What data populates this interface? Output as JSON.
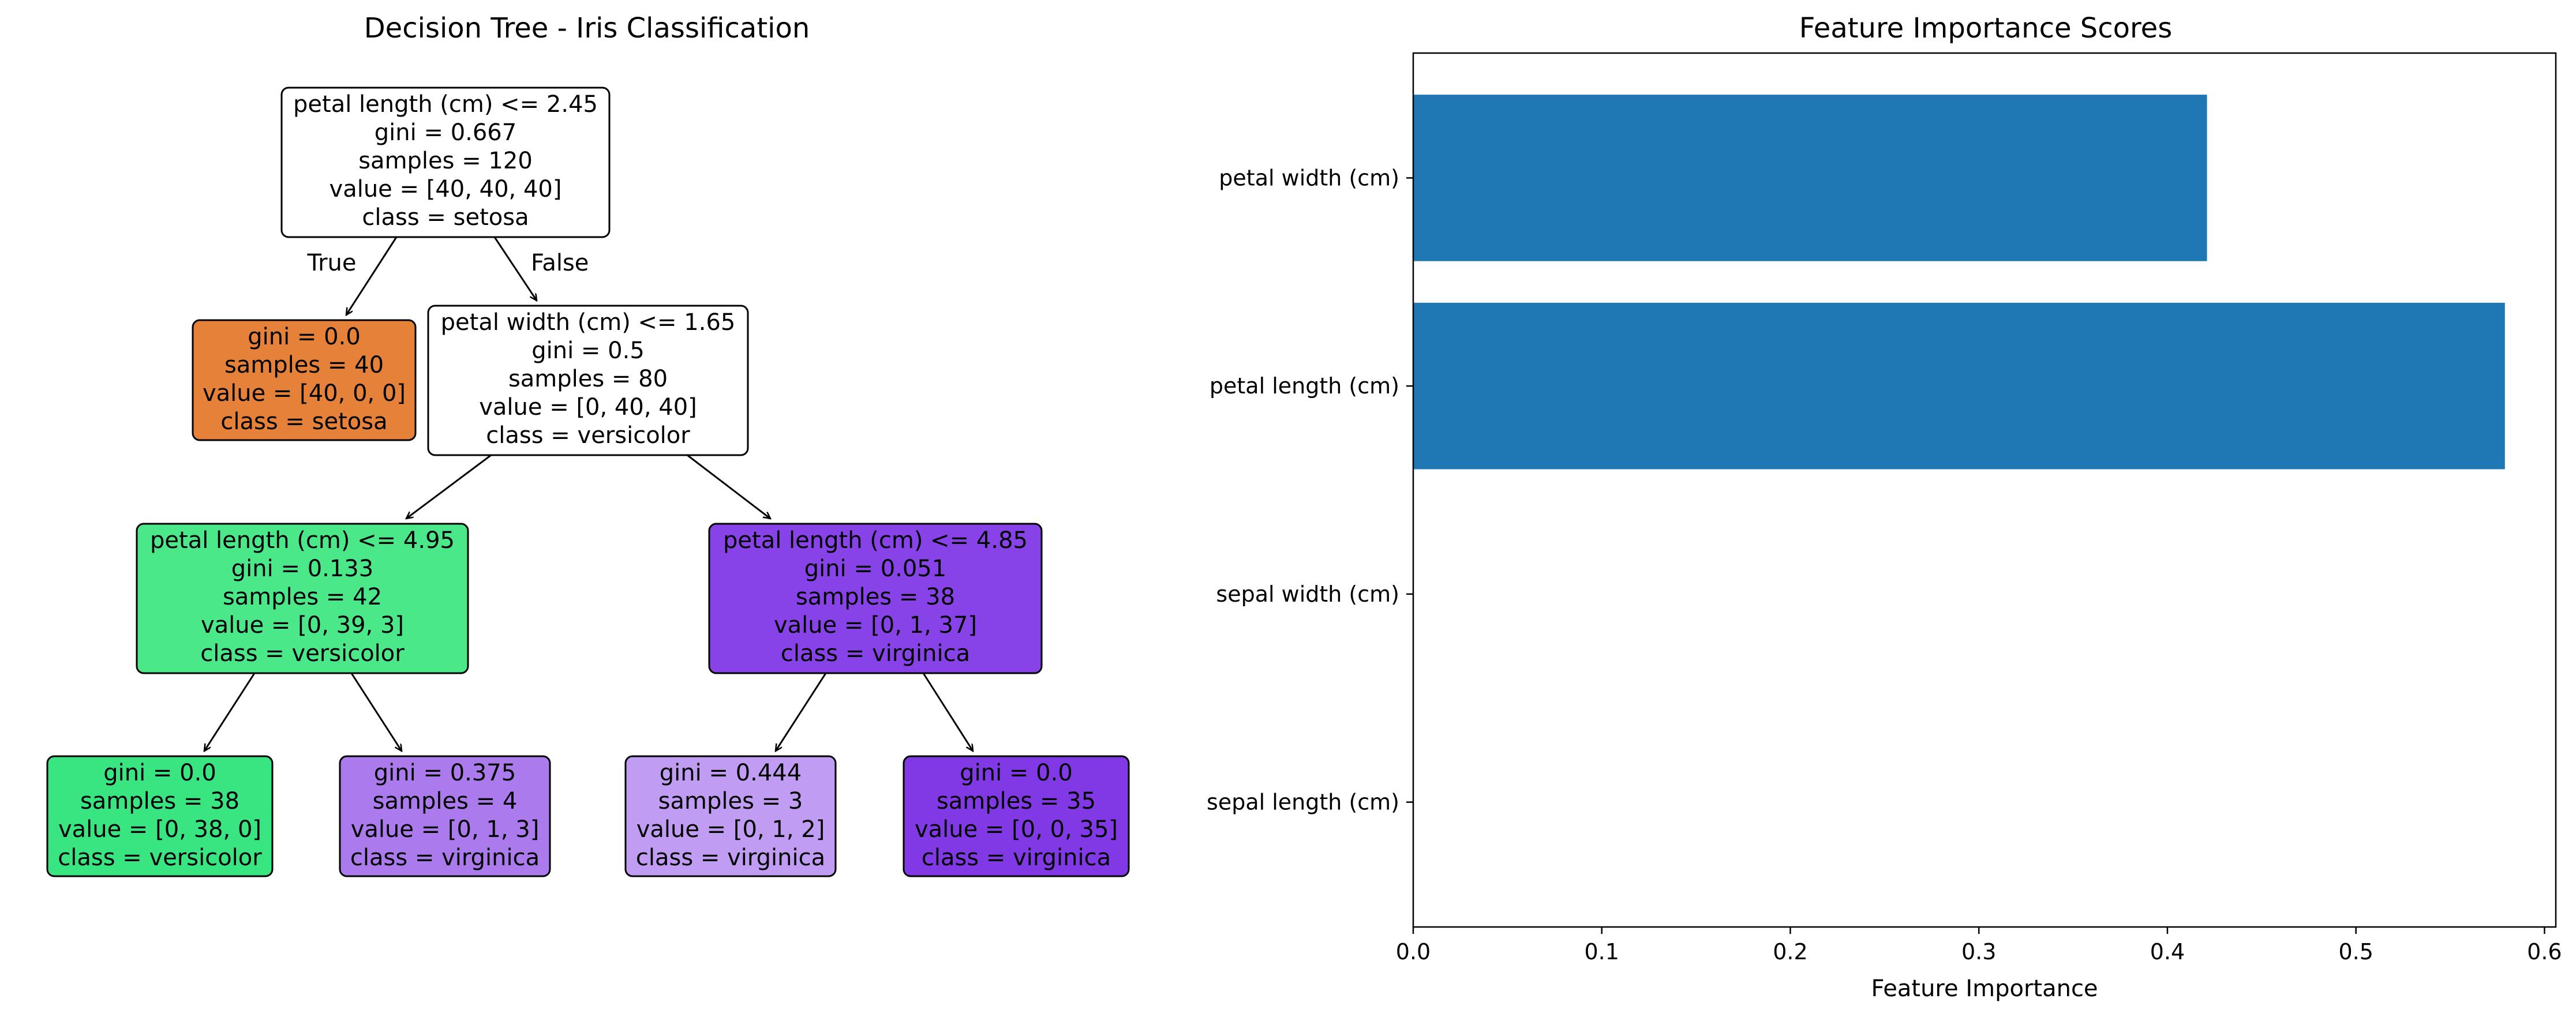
{
  "tree": {
    "title": "Decision Tree - Iris Classification",
    "edge_labels": {
      "true": "True",
      "false": "False"
    },
    "nodes": [
      {
        "id": "n0",
        "color": "#ffffff",
        "lines": [
          "petal length (cm) <= 2.45",
          "gini = 0.667",
          "samples = 120",
          "value = [40, 40, 40]",
          "class = setosa"
        ]
      },
      {
        "id": "n1",
        "color": "#e58139",
        "lines": [
          "gini = 0.0",
          "samples = 40",
          "value = [40, 0, 0]",
          "class = setosa"
        ]
      },
      {
        "id": "n2",
        "color": "#ffffff",
        "lines": [
          "petal width (cm) <= 1.65",
          "gini = 0.5",
          "samples = 80",
          "value = [0, 40, 40]",
          "class = versicolor"
        ]
      },
      {
        "id": "n3",
        "color": "#4be88a",
        "lines": [
          "petal length (cm) <= 4.95",
          "gini = 0.133",
          "samples = 42",
          "value = [0, 39, 3]",
          "class = versicolor"
        ]
      },
      {
        "id": "n4",
        "color": "#8742e8",
        "lines": [
          "petal length (cm) <= 4.85",
          "gini = 0.051",
          "samples = 38",
          "value = [0, 1, 37]",
          "class = virginica"
        ]
      },
      {
        "id": "n5",
        "color": "#39e581",
        "lines": [
          "gini = 0.0",
          "samples = 38",
          "value = [0, 38, 0]",
          "class = versicolor"
        ]
      },
      {
        "id": "n6",
        "color": "#ab7bee",
        "lines": [
          "gini = 0.375",
          "samples = 4",
          "value = [0, 1, 3]",
          "class = virginica"
        ]
      },
      {
        "id": "n7",
        "color": "#c09cf2",
        "lines": [
          "gini = 0.444",
          "samples = 3",
          "value = [0, 1, 2]",
          "class = virginica"
        ]
      },
      {
        "id": "n8",
        "color": "#8139e5",
        "lines": [
          "gini = 0.0",
          "samples = 35",
          "value = [0, 0, 35]",
          "class = virginica"
        ]
      }
    ],
    "edges": [
      [
        "n0",
        "n1"
      ],
      [
        "n0",
        "n2"
      ],
      [
        "n2",
        "n3"
      ],
      [
        "n2",
        "n4"
      ],
      [
        "n3",
        "n5"
      ],
      [
        "n3",
        "n6"
      ],
      [
        "n4",
        "n7"
      ],
      [
        "n4",
        "n8"
      ]
    ]
  },
  "chart_data": {
    "type": "bar",
    "orientation": "horizontal",
    "title": "Feature Importance Scores",
    "xlabel": "Feature Importance",
    "ylabel": "",
    "categories": [
      "sepal length (cm)",
      "sepal width (cm)",
      "petal length (cm)",
      "petal width (cm)"
    ],
    "values": [
      0.0,
      0.0,
      0.579,
      0.421
    ],
    "xlim": [
      0,
      0.606
    ],
    "xticks": [
      "0.0",
      "0.1",
      "0.2",
      "0.3",
      "0.4",
      "0.5",
      "0.6"
    ],
    "bar_color": "#1f77b4",
    "grid": false
  }
}
